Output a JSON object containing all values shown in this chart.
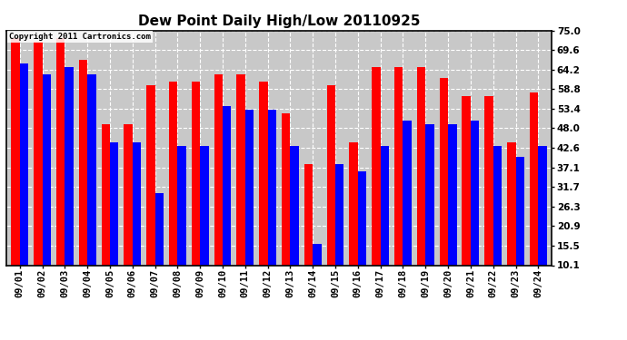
{
  "title": "Dew Point Daily High/Low 20110925",
  "copyright": "Copyright 2011 Cartronics.com",
  "dates": [
    "09/01",
    "09/02",
    "09/03",
    "09/04",
    "09/05",
    "09/06",
    "09/07",
    "09/08",
    "09/09",
    "09/10",
    "09/11",
    "09/12",
    "09/13",
    "09/14",
    "09/15",
    "09/16",
    "09/17",
    "09/18",
    "09/19",
    "09/20",
    "09/21",
    "09/22",
    "09/23",
    "09/24"
  ],
  "highs": [
    73,
    72,
    73,
    67,
    49,
    49,
    60,
    61,
    61,
    63,
    63,
    61,
    52,
    38,
    60,
    44,
    65,
    65,
    65,
    62,
    57,
    57,
    44,
    58
  ],
  "lows": [
    66,
    63,
    65,
    63,
    44,
    44,
    30,
    43,
    43,
    54,
    53,
    53,
    43,
    16,
    38,
    36,
    43,
    50,
    49,
    49,
    50,
    43,
    40,
    43
  ],
  "high_color": "#ff0000",
  "low_color": "#0000ff",
  "bg_color": "#ffffff",
  "plot_bg": "#c8c8c8",
  "ylim_min": 10.1,
  "ylim_max": 75.0,
  "yticks": [
    10.1,
    15.5,
    20.9,
    26.3,
    31.7,
    37.1,
    42.6,
    48.0,
    53.4,
    58.8,
    64.2,
    69.6,
    75.0
  ],
  "grid_color": "#ffffff",
  "title_fontsize": 11,
  "copyright_fontsize": 6.5,
  "tick_fontsize": 7.5,
  "bar_width": 0.38
}
